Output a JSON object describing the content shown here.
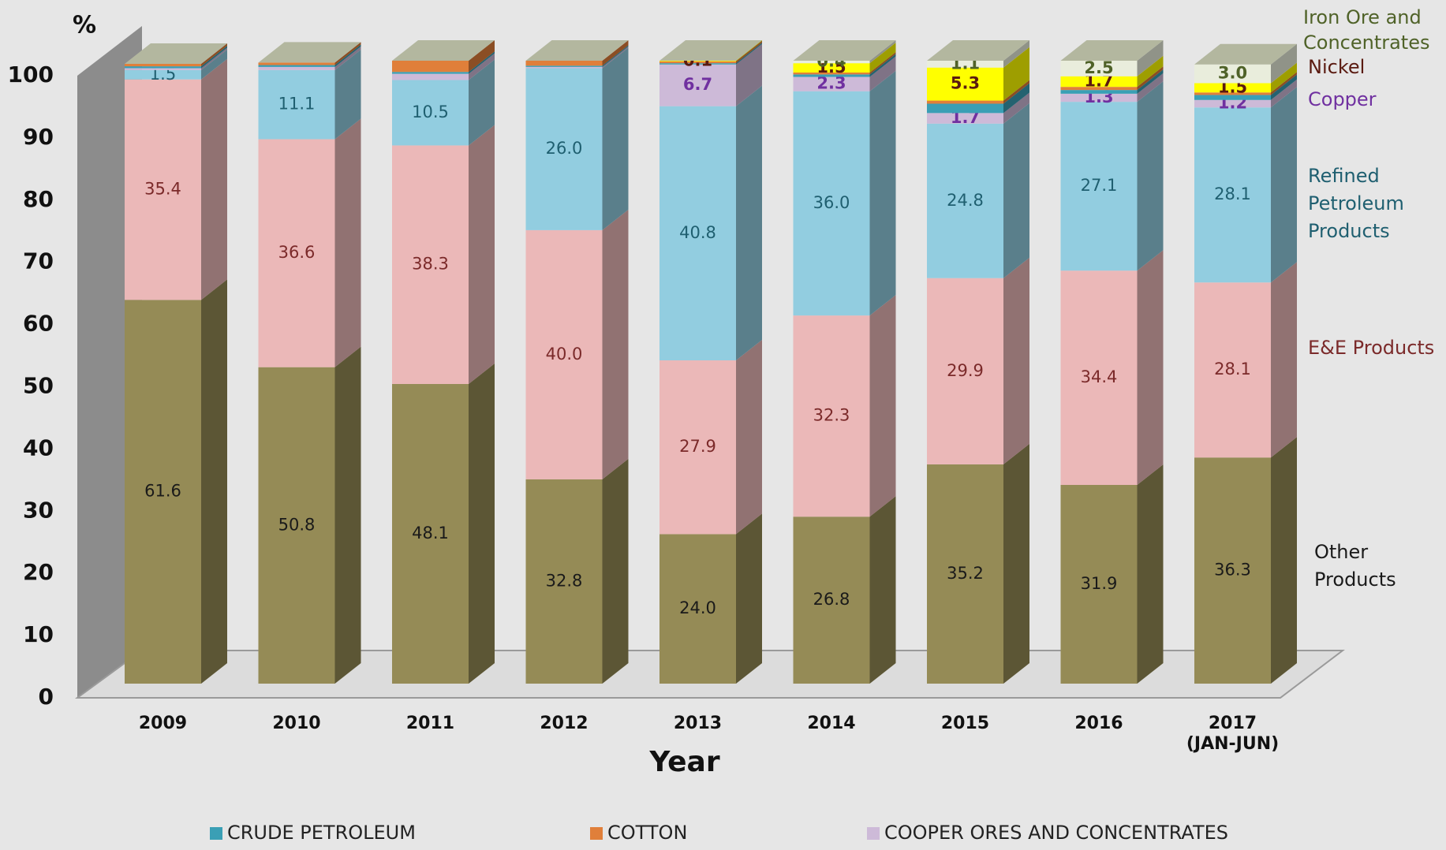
{
  "chart_data": {
    "type": "bar3d_stacked",
    "y_label": "%",
    "x_label": "Year",
    "ylim": [
      0,
      100
    ],
    "yticks": [
      0,
      10,
      20,
      30,
      40,
      50,
      60,
      70,
      80,
      90,
      100
    ],
    "grid": false,
    "categories": [
      "2009",
      "2010",
      "2011",
      "2012",
      "2013",
      "2014",
      "2015",
      "2016",
      "2017 (JAN-JUN)"
    ],
    "series": [
      {
        "name": "Other Products",
        "side": true,
        "color": "#958b56",
        "label_color": "#1a1a1a",
        "values": [
          61.6,
          50.8,
          48.1,
          32.8,
          24.0,
          26.8,
          35.2,
          31.9,
          36.3
        ],
        "value_labels": [
          "61.6",
          "50.8",
          "48.1",
          "32.8",
          "24.0",
          "26.8",
          "35.2",
          "31.9",
          "36.3"
        ]
      },
      {
        "name": "E&E Products",
        "side": true,
        "color": "#ebb8b8",
        "label_color": "#7b2a2a",
        "values": [
          35.4,
          36.6,
          38.3,
          40.0,
          27.9,
          32.3,
          29.9,
          34.4,
          28.1
        ],
        "value_labels": [
          "35.4",
          "36.6",
          "38.3",
          "40.0",
          "27.9",
          "32.3",
          "29.9",
          "34.4",
          "28.1"
        ]
      },
      {
        "name": "Refined Petroleum Products",
        "side": true,
        "color": "#92cde0",
        "label_color": "#1f5f70",
        "values": [
          1.5,
          11.1,
          10.5,
          26.0,
          40.8,
          36.0,
          24.8,
          27.1,
          28.1
        ],
        "value_labels": [
          "1.5",
          "11.1",
          "10.5",
          "26.0",
          "40.8",
          "36.0",
          "24.8",
          "27.1",
          "28.1"
        ]
      },
      {
        "name": "Copper",
        "side": true,
        "legend_name": "COOPER ORES AND CONCENTRATES",
        "color": "#cdbad8",
        "label_color": "#7030a0",
        "values": [
          0.3,
          0.5,
          1.0,
          0.2,
          6.7,
          2.3,
          1.7,
          1.3,
          1.2
        ],
        "value_labels": [
          null,
          null,
          null,
          null,
          "6.7",
          "2.3",
          "1.7",
          "1.3",
          "1.2"
        ]
      },
      {
        "name": "CRUDE PETROLEUM",
        "legend": true,
        "color": "#3a9fb5",
        "values": [
          0.3,
          0.3,
          0.3,
          0.2,
          0.2,
          0.4,
          1.5,
          0.6,
          0.8
        ]
      },
      {
        "name": "COTTON",
        "legend": true,
        "color": "#e07f3a",
        "values": [
          0.4,
          0.4,
          1.8,
          0.8,
          0.3,
          0.3,
          0.5,
          0.5,
          0.4
        ]
      },
      {
        "name": "Nickel",
        "side": true,
        "color": "#ffff00",
        "label_color": "#5a1a10",
        "values": [
          0,
          0,
          0,
          0,
          0.1,
          1.5,
          5.3,
          1.7,
          1.5
        ],
        "value_labels": [
          null,
          null,
          null,
          null,
          "0.1",
          "1.5",
          "5.3",
          "1.7",
          "1.5"
        ]
      },
      {
        "name": "Iron Ore and Concentrates",
        "side": true,
        "color": "#e9eddc",
        "label_color": "#4f6228",
        "values": [
          0,
          0,
          0,
          0,
          0,
          0.4,
          1.1,
          2.5,
          3.0
        ],
        "value_labels": [
          null,
          null,
          null,
          null,
          null,
          "0.4",
          "1.1",
          "2.5",
          "3.0"
        ]
      }
    ]
  }
}
